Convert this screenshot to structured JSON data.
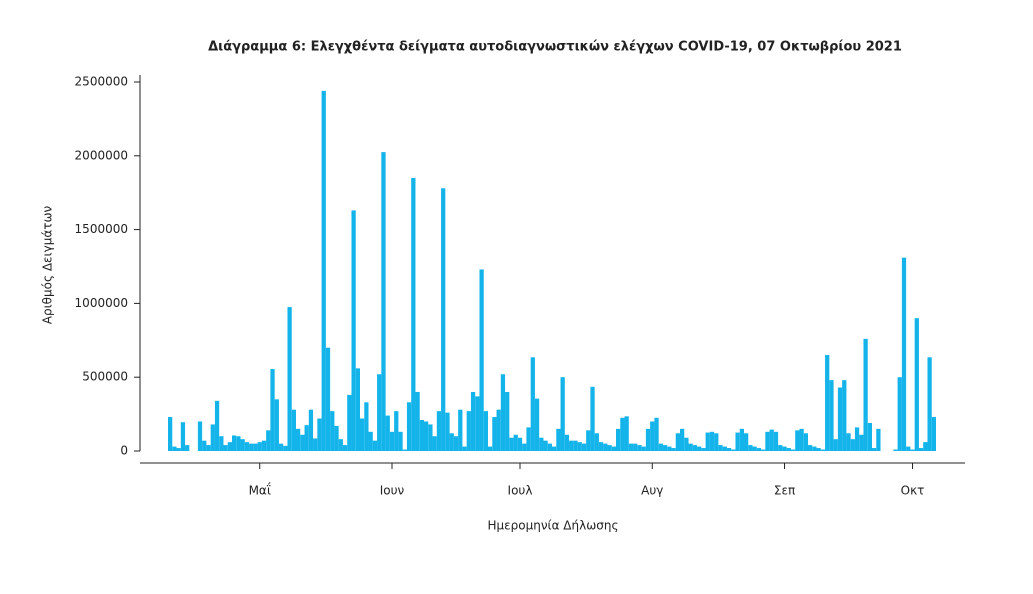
{
  "chart_data": {
    "type": "bar",
    "title": "Διάγραμμα 6: Ελεγχθέντα δείγματα αυτοδιαγνωστικών ελέγχων COVID-19, 07 Οκτωβρίου 2021",
    "xlabel": "Ημερομηνία Δήλωσης",
    "ylabel": "Αριθμός Δειγμάτων",
    "color": "#14b4ea",
    "grid": false,
    "ylim": [
      0,
      2500000
    ],
    "yticks": [
      0,
      500000,
      1000000,
      1500000,
      2000000,
      2500000
    ],
    "categories": [
      null,
      null,
      null,
      null,
      null,
      null,
      null,
      null,
      null,
      null,
      null,
      null,
      null,
      null,
      null,
      null,
      null,
      null,
      null,
      null,
      null,
      "Μαΐ",
      null,
      null,
      null,
      null,
      null,
      null,
      null,
      null,
      null,
      null,
      null,
      null,
      null,
      null,
      null,
      null,
      null,
      null,
      null,
      null,
      null,
      null,
      null,
      null,
      null,
      null,
      null,
      null,
      null,
      null,
      "Ιουν",
      null,
      null,
      null,
      null,
      null,
      null,
      null,
      null,
      null,
      null,
      null,
      null,
      null,
      null,
      null,
      null,
      null,
      null,
      null,
      null,
      null,
      null,
      null,
      null,
      null,
      null,
      null,
      null,
      null,
      "Ιουλ",
      null,
      null,
      null,
      null,
      null,
      null,
      null,
      null,
      null,
      null,
      null,
      null,
      null,
      null,
      null,
      null,
      null,
      null,
      null,
      null,
      null,
      null,
      null,
      null,
      null,
      null,
      null,
      null,
      null,
      null,
      "Αυγ",
      null,
      null,
      null,
      null,
      null,
      null,
      null,
      null,
      null,
      null,
      null,
      null,
      null,
      null,
      null,
      null,
      null,
      null,
      null,
      null,
      null,
      null,
      null,
      null,
      null,
      null,
      null,
      null,
      null,
      null,
      "Σεπ",
      null,
      null,
      null,
      null,
      null,
      null,
      null,
      null,
      null,
      null,
      null,
      null,
      null,
      null,
      null,
      null,
      null,
      null,
      null,
      null,
      null,
      null,
      null,
      null,
      null,
      null,
      null,
      null,
      null,
      "Οκτ",
      null,
      null,
      null,
      null,
      null
    ],
    "values": [
      230000,
      30000,
      20000,
      195000,
      40000,
      0,
      0,
      200000,
      70000,
      40000,
      180000,
      340000,
      100000,
      40000,
      60000,
      105000,
      100000,
      80000,
      60000,
      50000,
      50000,
      60000,
      70000,
      140000,
      555000,
      350000,
      50000,
      35000,
      975000,
      280000,
      150000,
      110000,
      175000,
      280000,
      85000,
      220000,
      2440000,
      700000,
      270000,
      170000,
      80000,
      40000,
      380000,
      1630000,
      560000,
      220000,
      330000,
      130000,
      70000,
      520000,
      2025000,
      240000,
      130000,
      270000,
      130000,
      10000,
      330000,
      1850000,
      400000,
      210000,
      200000,
      180000,
      100000,
      270000,
      1780000,
      260000,
      120000,
      100000,
      280000,
      30000,
      270000,
      400000,
      370000,
      1230000,
      270000,
      30000,
      230000,
      280000,
      520000,
      400000,
      90000,
      110000,
      90000,
      50000,
      160000,
      635000,
      355000,
      90000,
      70000,
      50000,
      30000,
      150000,
      500000,
      110000,
      70000,
      70000,
      60000,
      50000,
      140000,
      435000,
      120000,
      60000,
      50000,
      40000,
      30000,
      150000,
      225000,
      235000,
      50000,
      50000,
      40000,
      30000,
      150000,
      200000,
      225000,
      50000,
      40000,
      30000,
      20000,
      120000,
      150000,
      90000,
      50000,
      40000,
      30000,
      20000,
      125000,
      130000,
      120000,
      40000,
      30000,
      20000,
      10000,
      125000,
      150000,
      120000,
      40000,
      30000,
      20000,
      10000,
      130000,
      145000,
      130000,
      40000,
      30000,
      20000,
      10000,
      140000,
      150000,
      120000,
      40000,
      30000,
      20000,
      10000,
      650000,
      480000,
      80000,
      430000,
      480000,
      120000,
      80000,
      160000,
      110000,
      760000,
      190000,
      20000,
      150000,
      0,
      0,
      0,
      10000,
      500000,
      1310000,
      30000,
      10000,
      900000,
      20000,
      60000,
      635000,
      230000
    ]
  }
}
